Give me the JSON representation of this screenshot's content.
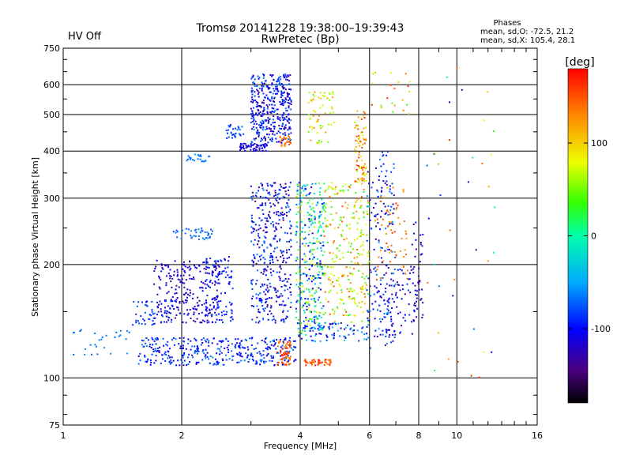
{
  "status": {
    "hv_label": "HV Off",
    "hv_color": "#cc0000"
  },
  "chart_data": {
    "type": "scatter",
    "title": "Tromsø 20141228 19:38:00–19:39:43",
    "subtitle": "RwPretec (Bp)",
    "xlabel": "Frequency [MHz]",
    "ylabel": "Stationary phase Virtual Height [km]",
    "x_scale": "log",
    "y_scale": "log",
    "xlim": [
      1,
      16
    ],
    "ylim": [
      75,
      750
    ],
    "x_ticks": [
      1,
      2,
      4,
      6,
      8,
      10,
      16
    ],
    "y_ticks": [
      75,
      100,
      200,
      300,
      400,
      500,
      600,
      750
    ],
    "grid": true,
    "phases_box": {
      "title": "Phases",
      "line_o": "mean, sd,O: -72.5, 21.2",
      "line_x": "mean, sd,X: 105.4, 28.1"
    },
    "colorbar": {
      "label": "[deg]",
      "range": [
        -180,
        180
      ],
      "ticks": [
        100,
        0,
        -100
      ]
    },
    "clusters": [
      {
        "f": [
          1.55,
          3.9
        ],
        "h": [
          108,
          128
        ],
        "phase": [
          -120,
          -60
        ],
        "n": 360
      },
      {
        "f": [
          3.5,
          3.8
        ],
        "h": [
          108,
          125
        ],
        "phase": [
          130,
          170
        ],
        "n": 60
      },
      {
        "f": [
          4.1,
          4.8
        ],
        "h": [
          108,
          112
        ],
        "phase": [
          130,
          170
        ],
        "n": 50
      },
      {
        "f": [
          3.9,
          6.0
        ],
        "h": [
          125,
          140
        ],
        "phase": [
          -130,
          -20
        ],
        "n": 80
      },
      {
        "f": [
          1.7,
          2.5
        ],
        "h": [
          140,
          205
        ],
        "phase": [
          -140,
          -95
        ],
        "n": 240
      },
      {
        "f": [
          2.3,
          2.7
        ],
        "h": [
          140,
          210
        ],
        "phase": [
          -110,
          -80
        ],
        "n": 100
      },
      {
        "f": [
          1.5,
          1.9
        ],
        "h": [
          138,
          160
        ],
        "phase": [
          -100,
          -70
        ],
        "n": 50
      },
      {
        "f": [
          1.9,
          2.4
        ],
        "h": [
          232,
          250
        ],
        "phase": [
          -80,
          -60
        ],
        "n": 40
      },
      {
        "f": [
          2.05,
          2.4
        ],
        "h": [
          375,
          392
        ],
        "phase": [
          -75,
          -55
        ],
        "n": 22
      },
      {
        "f": [
          2.6,
          2.9
        ],
        "h": [
          430,
          470
        ],
        "phase": [
          -90,
          -60
        ],
        "n": 30
      },
      {
        "f": [
          2.8,
          3.3
        ],
        "h": [
          400,
          420
        ],
        "phase": [
          -125,
          -95
        ],
        "n": 60
      },
      {
        "f": [
          3.0,
          3.8
        ],
        "h": [
          420,
          640
        ],
        "phase": [
          -140,
          -60
        ],
        "n": 380
      },
      {
        "f": [
          3.55,
          3.8
        ],
        "h": [
          410,
          440
        ],
        "phase": [
          110,
          160
        ],
        "n": 25
      },
      {
        "f": [
          3.0,
          3.8
        ],
        "h": [
          140,
          330
        ],
        "phase": [
          -140,
          -60
        ],
        "n": 380
      },
      {
        "f": [
          3.9,
          4.6
        ],
        "h": [
          130,
          330
        ],
        "phase": [
          -120,
          90
        ],
        "n": 340
      },
      {
        "f": [
          4.2,
          4.9
        ],
        "h": [
          420,
          580
        ],
        "phase": [
          40,
          130
        ],
        "n": 60
      },
      {
        "f": [
          4.6,
          6.0
        ],
        "h": [
          140,
          330
        ],
        "phase": [
          20,
          150
        ],
        "n": 260
      },
      {
        "f": [
          5.5,
          5.9
        ],
        "h": [
          330,
          520
        ],
        "phase": [
          60,
          170
        ],
        "n": 80
      },
      {
        "f": [
          5.9,
          7.0
        ],
        "h": [
          120,
          400
        ],
        "phase": [
          -140,
          -50
        ],
        "n": 180
      },
      {
        "f": [
          6.2,
          7.5
        ],
        "h": [
          180,
          330
        ],
        "phase": [
          110,
          160
        ],
        "n": 60
      },
      {
        "f": [
          6.6,
          7.8
        ],
        "h": [
          130,
          200
        ],
        "phase": [
          -140,
          -80
        ],
        "n": 70
      },
      {
        "f": [
          6.0,
          7.6
        ],
        "h": [
          500,
          650
        ],
        "phase": [
          30,
          170
        ],
        "n": 22
      },
      {
        "f": [
          7.7,
          8.2
        ],
        "h": [
          140,
          260
        ],
        "phase": [
          -150,
          -90
        ],
        "n": 40
      },
      {
        "f": [
          8.0,
          12.5
        ],
        "h": [
          90,
          680
        ],
        "phase": [
          -150,
          170
        ],
        "n": 40
      },
      {
        "f": [
          1.05,
          1.5
        ],
        "h": [
          115,
          135
        ],
        "phase": [
          -75,
          -55
        ],
        "n": 28
      }
    ]
  }
}
